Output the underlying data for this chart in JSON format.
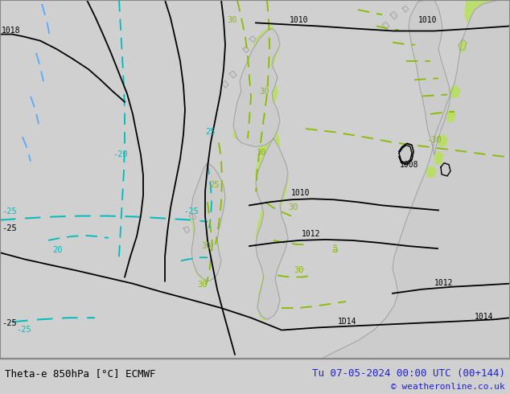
{
  "title_left": "Theta-e 850hPa [°C] ECMWF",
  "title_right": "Tu 07-05-2024 00:00 UTC (00+144)",
  "copyright": "© weatheronline.co.uk",
  "bg_color": "#d0d0d0",
  "map_bg": "#d8d8d8",
  "green_fill_color": "#b8e060",
  "land_color": "#cccccc",
  "land_outline": "#999999",
  "font_color_left": "#000000",
  "font_color_right": "#2222cc",
  "font_color_copyright": "#2222cc",
  "bottom_bar_color": "#e8e8e8",
  "cyan_color": "#00bbbb",
  "yg_color": "#88bb00",
  "black_contour": "#000000"
}
